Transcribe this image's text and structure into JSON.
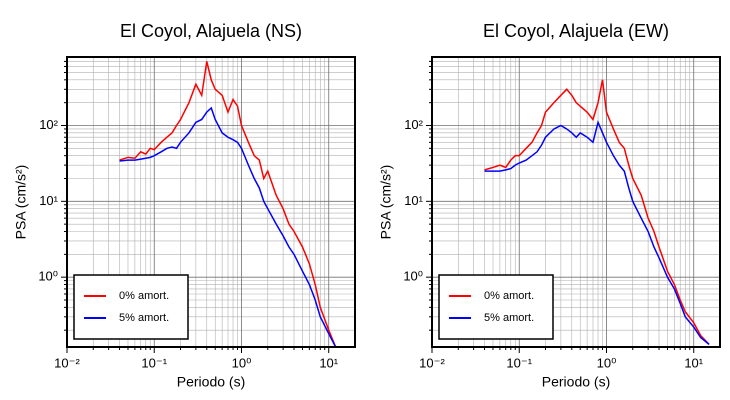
{
  "chart_data": [
    {
      "type": "line",
      "title": "El Coyol, Alajuela (NS)",
      "x_label": "Periodo (s)",
      "y_label": "PSA (cm/s²)",
      "x": [
        0.04,
        0.05,
        0.06,
        0.07,
        0.08,
        0.09,
        0.1,
        0.12,
        0.14,
        0.16,
        0.18,
        0.2,
        0.25,
        0.3,
        0.35,
        0.4,
        0.45,
        0.5,
        0.6,
        0.7,
        0.8,
        0.9,
        1.0,
        1.2,
        1.4,
        1.6,
        1.8,
        2,
        2.5,
        3,
        3.5,
        4,
        5,
        6,
        7,
        8,
        10,
        12
      ],
      "series": [
        {
          "name": "0% amort.",
          "color": "#ff0000",
          "values": [
            35,
            38,
            37,
            45,
            42,
            50,
            48,
            60,
            70,
            80,
            100,
            120,
            200,
            350,
            250,
            700,
            400,
            300,
            250,
            150,
            220,
            180,
            100,
            60,
            40,
            35,
            20,
            25,
            12,
            8,
            5,
            4,
            2.5,
            1.5,
            0.8,
            0.4,
            0.2,
            0.12
          ]
        },
        {
          "name": "5% amort.",
          "color": "#0000ff",
          "values": [
            34,
            35,
            35,
            36,
            37,
            38,
            40,
            45,
            50,
            52,
            50,
            60,
            80,
            110,
            120,
            150,
            170,
            120,
            80,
            70,
            65,
            60,
            50,
            30,
            20,
            15,
            10,
            8,
            5,
            3.5,
            2.5,
            2,
            1.2,
            0.8,
            0.5,
            0.3,
            0.18,
            0.12
          ]
        }
      ],
      "log_x": true,
      "log_y": true,
      "grid": true,
      "legend": "lower left",
      "xlim": [
        0.01,
        20
      ],
      "ylim": [
        0.12,
        800
      ],
      "xticks": [
        {
          "value": 0.01,
          "label": "10⁻²"
        },
        {
          "value": 0.1,
          "label": "10⁻¹"
        },
        {
          "value": 1,
          "label": "10⁰"
        },
        {
          "value": 10,
          "label": "10¹"
        }
      ],
      "yticks": [
        {
          "value": 1,
          "label": "10⁰"
        },
        {
          "value": 10,
          "label": "10¹"
        },
        {
          "value": 100,
          "label": "10²"
        }
      ],
      "xminorticks": [
        0.02,
        0.03,
        0.04,
        0.05,
        0.06,
        0.07,
        0.08,
        0.09,
        0.2,
        0.3,
        0.4,
        0.5,
        0.6,
        0.7,
        0.8,
        0.9,
        2,
        3,
        4,
        5,
        6,
        7,
        8,
        9
      ],
      "yminorticks": [
        0.2,
        0.3,
        0.4,
        0.5,
        0.6,
        0.7,
        0.8,
        0.9,
        2,
        3,
        4,
        5,
        6,
        7,
        8,
        9,
        20,
        30,
        40,
        50,
        60,
        70,
        80,
        90,
        200,
        300,
        400,
        500,
        600,
        700
      ]
    },
    {
      "type": "line",
      "title": "El Coyol, Alajuela (EW)",
      "x_label": "Periodo (s)",
      "y_label": "PSA (cm/s²)",
      "x": [
        0.04,
        0.05,
        0.06,
        0.07,
        0.08,
        0.09,
        0.1,
        0.12,
        0.14,
        0.16,
        0.18,
        0.2,
        0.25,
        0.3,
        0.35,
        0.4,
        0.45,
        0.5,
        0.6,
        0.7,
        0.8,
        0.9,
        1.0,
        1.2,
        1.4,
        1.6,
        1.8,
        2,
        2.5,
        3,
        3.5,
        4,
        5,
        6,
        7,
        8,
        10,
        12,
        15
      ],
      "series": [
        {
          "name": "0% amort.",
          "color": "#ff0000",
          "values": [
            26,
            28,
            30,
            28,
            35,
            40,
            40,
            50,
            60,
            80,
            100,
            150,
            200,
            250,
            300,
            250,
            200,
            180,
            150,
            120,
            200,
            400,
            150,
            90,
            60,
            50,
            30,
            20,
            12,
            6,
            4,
            2.5,
            1.2,
            0.8,
            0.5,
            0.35,
            0.25,
            0.17,
            0.13
          ]
        },
        {
          "name": "5% amort.",
          "color": "#0000ff",
          "values": [
            25,
            25,
            25,
            26,
            27,
            30,
            32,
            35,
            40,
            45,
            55,
            70,
            90,
            100,
            90,
            80,
            70,
            80,
            70,
            60,
            110,
            80,
            60,
            40,
            30,
            25,
            15,
            10,
            6,
            4,
            2.5,
            1.8,
            1.0,
            0.7,
            0.45,
            0.3,
            0.22,
            0.16,
            0.13
          ]
        }
      ],
      "log_x": true,
      "log_y": true,
      "grid": true,
      "legend": "lower left",
      "xlim": [
        0.01,
        20
      ],
      "ylim": [
        0.12,
        800
      ],
      "xticks": [
        {
          "value": 0.01,
          "label": "10⁻²"
        },
        {
          "value": 0.1,
          "label": "10⁻¹"
        },
        {
          "value": 1,
          "label": "10⁰"
        },
        {
          "value": 10,
          "label": "10¹"
        }
      ],
      "yticks": [
        {
          "value": 1,
          "label": "10⁰"
        },
        {
          "value": 10,
          "label": "10¹"
        },
        {
          "value": 100,
          "label": "10²"
        }
      ],
      "xminorticks": [
        0.02,
        0.03,
        0.04,
        0.05,
        0.06,
        0.07,
        0.08,
        0.09,
        0.2,
        0.3,
        0.4,
        0.5,
        0.6,
        0.7,
        0.8,
        0.9,
        2,
        3,
        4,
        5,
        6,
        7,
        8,
        9
      ],
      "yminorticks": [
        0.2,
        0.3,
        0.4,
        0.5,
        0.6,
        0.7,
        0.8,
        0.9,
        2,
        3,
        4,
        5,
        6,
        7,
        8,
        9,
        20,
        30,
        40,
        50,
        60,
        70,
        80,
        90,
        200,
        300,
        400,
        500,
        600,
        700
      ]
    }
  ]
}
